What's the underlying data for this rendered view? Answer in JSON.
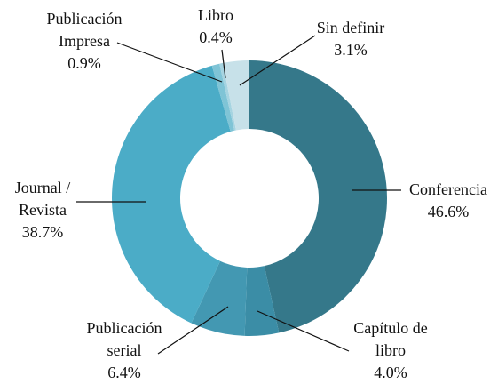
{
  "chart_data": {
    "type": "donut",
    "categories": [
      "Conferencia",
      "Capítulo de\nlibro",
      "Publicación\nserial",
      "Journal /\nRevista",
      "Publicación\nImpresa",
      "Libro",
      "Sin definir"
    ],
    "values": [
      46.6,
      4.0,
      6.4,
      38.7,
      0.9,
      0.4,
      3.1
    ],
    "value_labels": [
      "46.6%",
      "4.0%",
      "6.4%",
      "38.7%",
      "0.9%",
      "0.4%",
      "3.1%"
    ],
    "colors": [
      "#35788a",
      "#3b8da6",
      "#4398b2",
      "#4bacc7",
      "#7fc4d6",
      "#a6d4e1",
      "#c7e1e9"
    ]
  }
}
